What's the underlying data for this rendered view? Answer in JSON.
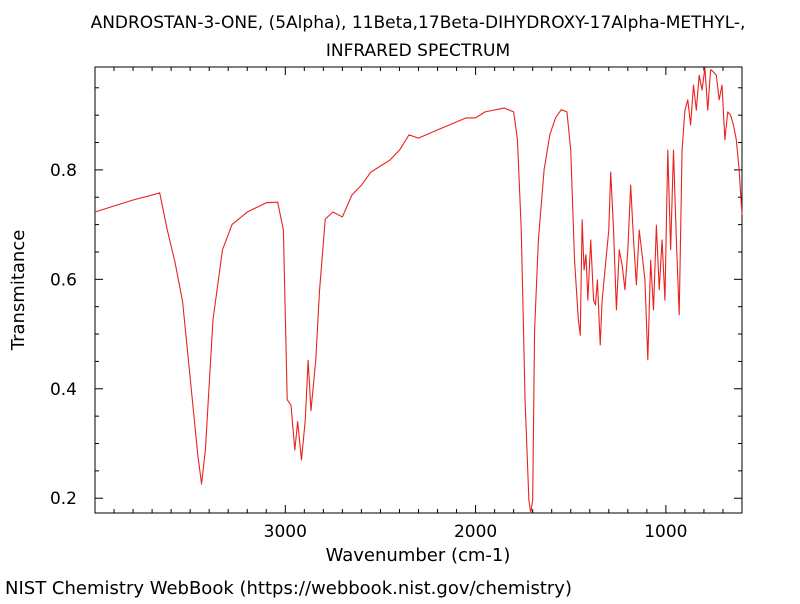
{
  "chart_data": {
    "type": "line",
    "title": "ANDROSTAN-3-ONE, (5Alpha), 11Beta,17Beta-DIHYDROXY-17Alpha-METHYL-,",
    "subtitle": "INFRARED SPECTRUM",
    "x_label": "Wavenumber (cm-1)",
    "y_label": "Transmitance",
    "xlim": [
      4000,
      600
    ],
    "ylim": [
      0.173,
      0.988
    ],
    "xticks": [
      3000,
      2000,
      1000
    ],
    "yticks": [
      0.2,
      0.4,
      0.6,
      0.8
    ],
    "xminorticks": [
      3900,
      3800,
      3700,
      3600,
      3500,
      3400,
      3300,
      3200,
      3100,
      2900,
      2800,
      2700,
      2600,
      2500,
      2400,
      2300,
      2200,
      2100,
      1900,
      1800,
      1700,
      1600,
      1500,
      1400,
      1300,
      1200,
      1100,
      900,
      800,
      700
    ],
    "yminorticks": [
      0.25,
      0.3,
      0.35,
      0.45,
      0.5,
      0.55,
      0.65,
      0.7,
      0.75,
      0.85,
      0.9,
      0.95
    ],
    "x": [
      4000,
      3800,
      3700,
      3660,
      3620,
      3580,
      3540,
      3500,
      3460,
      3440,
      3420,
      3380,
      3330,
      3280,
      3200,
      3100,
      3040,
      3010,
      2990,
      2970,
      2950,
      2935,
      2915,
      2895,
      2880,
      2865,
      2840,
      2820,
      2790,
      2750,
      2700,
      2650,
      2600,
      2550,
      2450,
      2400,
      2350,
      2300,
      2200,
      2050,
      2000,
      1950,
      1850,
      1800,
      1780,
      1760,
      1740,
      1720,
      1710,
      1700,
      1690,
      1670,
      1640,
      1610,
      1580,
      1550,
      1520,
      1500,
      1480,
      1460,
      1450,
      1440,
      1430,
      1420,
      1410,
      1395,
      1380,
      1370,
      1360,
      1345,
      1335,
      1320,
      1300,
      1290,
      1275,
      1260,
      1245,
      1230,
      1215,
      1200,
      1185,
      1170,
      1155,
      1140,
      1125,
      1110,
      1095,
      1080,
      1065,
      1050,
      1035,
      1020,
      1005,
      990,
      975,
      960,
      945,
      930,
      915,
      900,
      885,
      870,
      855,
      840,
      825,
      810,
      795,
      780,
      765,
      750,
      735,
      720,
      705,
      690,
      675,
      660,
      645,
      630,
      615,
      600
    ],
    "series": [
      {
        "name": "spectrum",
        "color": "#e8231f",
        "values": [
          0.723,
          0.745,
          0.754,
          0.758,
          0.69,
          0.632,
          0.56,
          0.42,
          0.28,
          0.226,
          0.288,
          0.526,
          0.654,
          0.7,
          0.723,
          0.74,
          0.741,
          0.69,
          0.38,
          0.37,
          0.288,
          0.34,
          0.27,
          0.343,
          0.452,
          0.36,
          0.452,
          0.58,
          0.71,
          0.723,
          0.714,
          0.754,
          0.772,
          0.796,
          0.818,
          0.836,
          0.864,
          0.858,
          0.873,
          0.895,
          0.895,
          0.906,
          0.913,
          0.906,
          0.855,
          0.69,
          0.38,
          0.197,
          0.173,
          0.197,
          0.507,
          0.672,
          0.8,
          0.864,
          0.895,
          0.91,
          0.906,
          0.836,
          0.635,
          0.526,
          0.498,
          0.709,
          0.617,
          0.645,
          0.562,
          0.672,
          0.562,
          0.553,
          0.599,
          0.48,
          0.562,
          0.617,
          0.69,
          0.796,
          0.69,
          0.544,
          0.654,
          0.626,
          0.581,
          0.654,
          0.772,
          0.672,
          0.59,
          0.69,
          0.645,
          0.599,
          0.453,
          0.635,
          0.544,
          0.699,
          0.581,
          0.672,
          0.562,
          0.836,
          0.654,
          0.836,
          0.672,
          0.535,
          0.836,
          0.909,
          0.928,
          0.882,
          0.955,
          0.909,
          0.973,
          0.946,
          0.986,
          0.909,
          0.983,
          0.979,
          0.973,
          0.928,
          0.955,
          0.855,
          0.906,
          0.9,
          0.882,
          0.855,
          0.8,
          0.718
        ]
      }
    ]
  },
  "footer": "NIST Chemistry WebBook (https://webbook.nist.gov/chemistry)"
}
